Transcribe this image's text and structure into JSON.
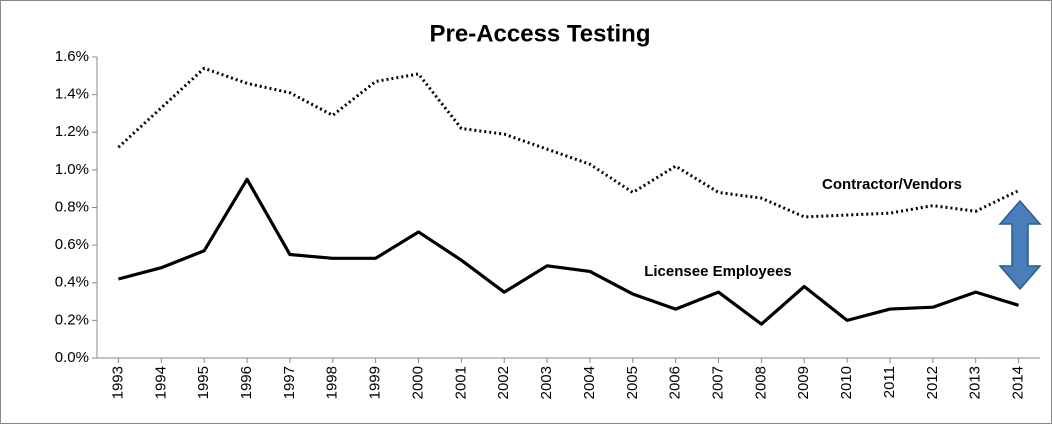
{
  "chart_data": {
    "type": "line",
    "title": "Pre-Access Testing",
    "x": [
      1993,
      1994,
      1995,
      1996,
      1997,
      1998,
      1999,
      2000,
      2001,
      2002,
      2003,
      2004,
      2005,
      2006,
      2007,
      2008,
      2009,
      2010,
      2011,
      2012,
      2013,
      2014
    ],
    "series": [
      {
        "name": "Contractor/Vendors",
        "color": "#000000",
        "dash": "dotted",
        "values": [
          1.12,
          1.33,
          1.54,
          1.46,
          1.41,
          1.29,
          1.47,
          1.51,
          1.22,
          1.19,
          1.11,
          1.03,
          0.88,
          1.02,
          0.88,
          0.85,
          0.75,
          0.76,
          0.77,
          0.81,
          0.78,
          0.89
        ]
      },
      {
        "name": "Licensee Employees",
        "color": "#000000",
        "dash": "solid",
        "values": [
          0.42,
          0.48,
          0.57,
          0.95,
          0.55,
          0.53,
          0.53,
          0.67,
          0.52,
          0.35,
          0.49,
          0.46,
          0.34,
          0.26,
          0.35,
          0.18,
          0.38,
          0.2,
          0.26,
          0.27,
          0.35,
          0.28
        ]
      }
    ],
    "ylim": [
      0,
      1.6
    ],
    "yticks": [
      {
        "value": 0,
        "label": "0.0%"
      },
      {
        "value": 0.2,
        "label": "0.2%"
      },
      {
        "value": 0.4,
        "label": "0.4%"
      },
      {
        "value": 0.6,
        "label": "0.6%"
      },
      {
        "value": 0.8,
        "label": "0.8%"
      },
      {
        "value": 1.0,
        "label": "1.0%"
      },
      {
        "value": 1.2,
        "label": "1.2%"
      },
      {
        "value": 1.4,
        "label": "1.4%"
      },
      {
        "value": 1.6,
        "label": "1.6%"
      }
    ],
    "grid": false
  }
}
